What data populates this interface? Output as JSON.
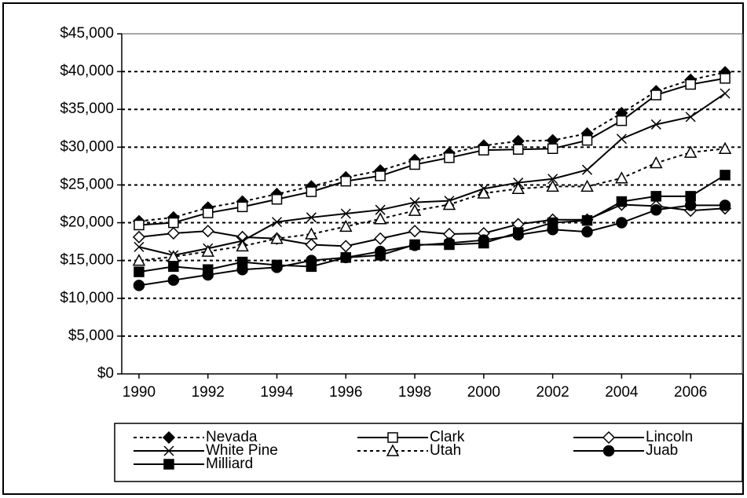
{
  "chart_data": {
    "type": "line",
    "x": [
      1990,
      1991,
      1992,
      1993,
      1994,
      1995,
      1996,
      1997,
      1998,
      1999,
      2000,
      2001,
      2002,
      2003,
      2004,
      2005,
      2006,
      2007
    ],
    "xlim": [
      1989.5,
      2007.5
    ],
    "xticks": [
      1990,
      1992,
      1994,
      1996,
      1998,
      2000,
      2002,
      2004,
      2006
    ],
    "ylim": [
      0,
      45000
    ],
    "yticks": [
      {
        "value": 0,
        "label": "$0"
      },
      {
        "value": 5000,
        "label": "$5,000"
      },
      {
        "value": 10000,
        "label": "$10,000"
      },
      {
        "value": 15000,
        "label": "$15,000"
      },
      {
        "value": 20000,
        "label": "$20,000"
      },
      {
        "value": 25000,
        "label": "$25,000"
      },
      {
        "value": 30000,
        "label": "$30,000"
      },
      {
        "value": 35000,
        "label": "$35,000"
      },
      {
        "value": 40000,
        "label": "$40,000"
      },
      {
        "value": 45000,
        "label": "$45,000"
      }
    ],
    "grid": true,
    "legend": "bottom",
    "series": [
      {
        "name": "Nevada",
        "color": "#000000",
        "line_style": "dashed",
        "marker": "diamond-filled",
        "values": [
          20200,
          20700,
          22000,
          22800,
          23800,
          24800,
          26000,
          26900,
          28300,
          29200,
          30200,
          30800,
          30900,
          31800,
          34500,
          37400,
          38900,
          39900
        ]
      },
      {
        "name": "Clark",
        "color": "#000000",
        "line_style": "solid",
        "marker": "square-open",
        "values": [
          19700,
          20000,
          21300,
          22100,
          23100,
          24100,
          25500,
          26200,
          27700,
          28600,
          29600,
          29700,
          29800,
          30900,
          33500,
          36900,
          38300,
          39100
        ]
      },
      {
        "name": "Lincoln",
        "color": "#000000",
        "line_style": "solid",
        "marker": "diamond-open",
        "values": [
          18100,
          18600,
          18900,
          18100,
          17900,
          17100,
          16900,
          17900,
          18900,
          18500,
          18600,
          19800,
          20400,
          20400,
          22400,
          22200,
          21600,
          21900
        ]
      },
      {
        "name": "White Pine",
        "color": "#000000",
        "line_style": "solid",
        "marker": "x",
        "values": [
          16800,
          15700,
          16600,
          17600,
          20100,
          20700,
          21200,
          21700,
          22700,
          22900,
          24500,
          25300,
          25800,
          27000,
          31100,
          33000,
          34000,
          37100
        ]
      },
      {
        "name": "Utah",
        "color": "#000000",
        "line_style": "dashed",
        "marker": "triangle-open",
        "values": [
          15000,
          15500,
          16200,
          16900,
          17900,
          18500,
          19500,
          20500,
          21600,
          22400,
          23900,
          24500,
          24800,
          24800,
          25900,
          27900,
          29300,
          29800
        ]
      },
      {
        "name": "Juab",
        "color": "#000000",
        "line_style": "solid",
        "marker": "circle-filled",
        "values": [
          11700,
          12400,
          13100,
          13800,
          14100,
          15000,
          15400,
          16200,
          17000,
          17300,
          17700,
          18400,
          19100,
          18800,
          20000,
          21700,
          22300,
          22300
        ]
      },
      {
        "name": "Milliard",
        "color": "#000000",
        "line_style": "solid",
        "marker": "square-filled",
        "values": [
          13500,
          14200,
          13800,
          14800,
          14400,
          14200,
          15400,
          15700,
          17100,
          17100,
          17300,
          18700,
          20000,
          20300,
          22800,
          23500,
          23500,
          26300
        ]
      }
    ]
  }
}
